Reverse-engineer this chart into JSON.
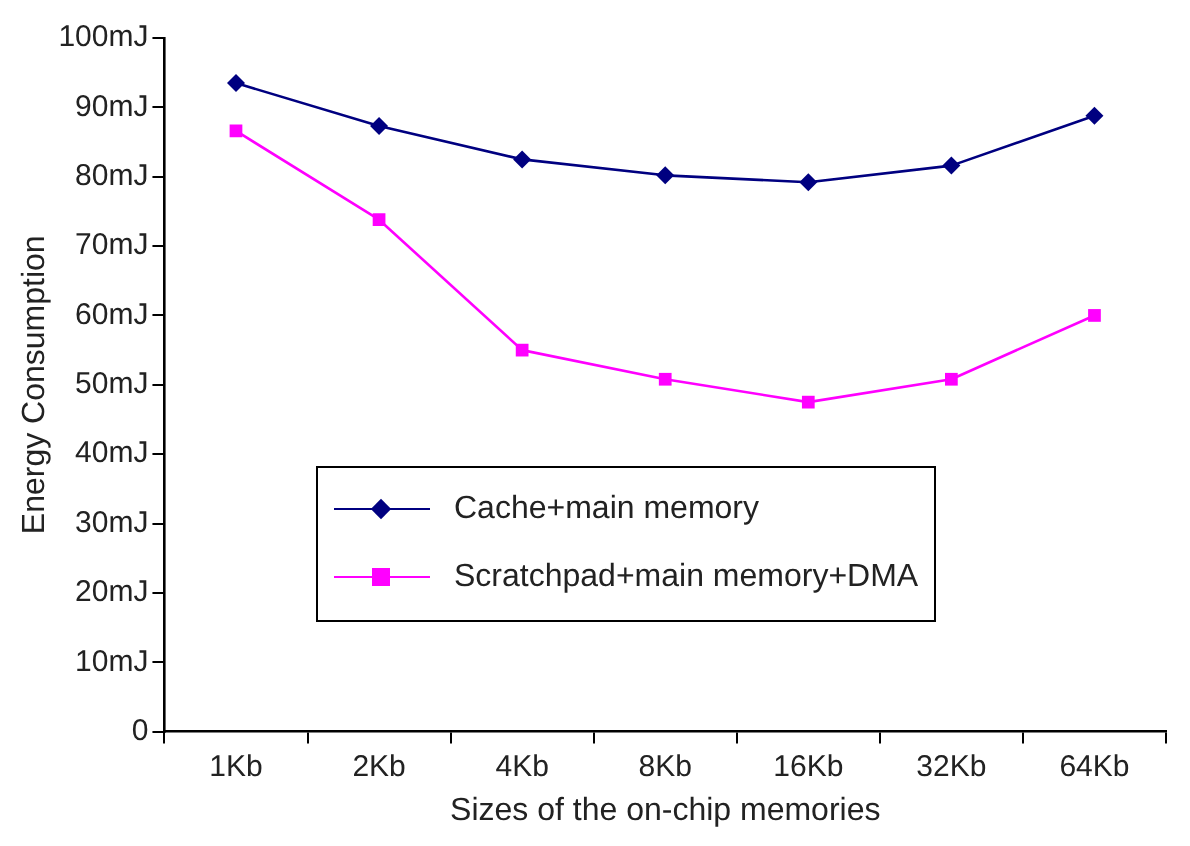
{
  "chart_data": {
    "type": "line",
    "xlabel": "Sizes of the on-chip memories",
    "ylabel": "Energy Consumption",
    "categories": [
      "1Kb",
      "2Kb",
      "4Kb",
      "8Kb",
      "16Kb",
      "32Kb",
      "64Kb"
    ],
    "series": [
      {
        "name": "Cache+main memory",
        "color": "#000080",
        "marker": "diamond",
        "values": [
          93.5,
          87.3,
          82.5,
          80.2,
          79.2,
          81.6,
          88.8
        ]
      },
      {
        "name": "Scratchpad+main memory+DMA",
        "color": "#ff00ff",
        "marker": "square",
        "values": [
          86.6,
          73.8,
          55.0,
          50.8,
          47.5,
          50.8,
          60.0
        ]
      }
    ],
    "ylim": [
      0,
      100
    ],
    "yticks": [
      {
        "value": 0,
        "label": "0"
      },
      {
        "value": 10,
        "label": "10mJ"
      },
      {
        "value": 20,
        "label": "20mJ"
      },
      {
        "value": 30,
        "label": "30mJ"
      },
      {
        "value": 40,
        "label": "40mJ"
      },
      {
        "value": 50,
        "label": "50mJ"
      },
      {
        "value": 60,
        "label": "60mJ"
      },
      {
        "value": 70,
        "label": "70mJ"
      },
      {
        "value": 80,
        "label": "80mJ"
      },
      {
        "value": 90,
        "label": "90mJ"
      },
      {
        "value": 100,
        "label": "100mJ"
      }
    ],
    "grid": false,
    "legend": "bottom",
    "line_style": "solid"
  }
}
